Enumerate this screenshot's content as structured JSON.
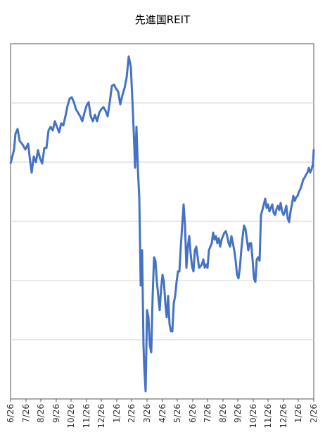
{
  "chart_data": {
    "type": "line",
    "title": "先進国REIT",
    "color": "#4472c4",
    "x": [
      0,
      5,
      7,
      10,
      13,
      17,
      21,
      25,
      28,
      30,
      33,
      36,
      39,
      42,
      45,
      48,
      51,
      54,
      57,
      60,
      63,
      66,
      69,
      72,
      75,
      78,
      81,
      84,
      87,
      90,
      93,
      96,
      99,
      102,
      105,
      108,
      111,
      114,
      117,
      120,
      123,
      126,
      129,
      132,
      135,
      138,
      141,
      144,
      147,
      150,
      153,
      156,
      159,
      162,
      165,
      168,
      171,
      174,
      176,
      177,
      179,
      181,
      183,
      185,
      187,
      189,
      190,
      192,
      194,
      196,
      198,
      200,
      202,
      204,
      206,
      208,
      210,
      212,
      214,
      216,
      218,
      220,
      222,
      224,
      226,
      228,
      230,
      232,
      234,
      236,
      238,
      240,
      242,
      244,
      246,
      248,
      250,
      252,
      254,
      256,
      258,
      260,
      262,
      264,
      266,
      268,
      270,
      272,
      274,
      276,
      278,
      280,
      282,
      284,
      286,
      288,
      290,
      292,
      294,
      296,
      298,
      300,
      302,
      304,
      306,
      308,
      310,
      312,
      314,
      316,
      318,
      320,
      322,
      324,
      326,
      328,
      330,
      332,
      334,
      336,
      338,
      340,
      342,
      344,
      346,
      348,
      350,
      352,
      354,
      356,
      358,
      360,
      362,
      364,
      366,
      368,
      370,
      372,
      374,
      376,
      378,
      380,
      382,
      384,
      386,
      388,
      390,
      392,
      394,
      396,
      398,
      400,
      402,
      404,
      406,
      408,
      410,
      412,
      414,
      416,
      418,
      420,
      422,
      424,
      426,
      428,
      430,
      431
    ],
    "values": [
      334,
      354,
      376,
      383,
      366,
      361,
      354,
      362,
      336,
      321,
      344,
      336,
      353,
      341,
      334,
      356,
      356,
      381,
      386,
      381,
      394,
      386,
      378,
      391,
      388,
      401,
      416,
      426,
      428,
      421,
      411,
      406,
      401,
      394,
      406,
      416,
      421,
      401,
      394,
      403,
      394,
      406,
      411,
      414,
      409,
      401,
      421,
      444,
      446,
      440,
      436,
      418,
      431,
      441,
      456,
      486,
      471,
      406,
      356,
      328,
      386,
      326,
      286,
      161,
      211,
      76,
      46,
      11,
      126,
      116,
      76,
      66,
      146,
      201,
      196,
      166,
      146,
      126,
      156,
      176,
      166,
      136,
      116,
      146,
      106,
      96,
      96,
      136,
      146,
      166,
      181,
      181,
      216,
      246,
      276,
      246,
      186,
      216,
      231,
      206,
      188,
      181,
      211,
      216,
      201,
      186,
      188,
      191,
      198,
      186,
      191,
      186,
      211,
      216,
      221,
      236,
      226,
      231,
      221,
      228,
      216,
      226,
      231,
      236,
      238,
      231,
      221,
      216,
      231,
      221,
      211,
      196,
      176,
      171,
      186,
      211,
      231,
      246,
      241,
      226,
      211,
      221,
      221,
      198,
      171,
      166,
      198,
      201,
      196,
      261,
      268,
      276,
      284,
      271,
      276,
      266,
      271,
      276,
      264,
      261,
      269,
      274,
      268,
      278,
      266,
      261,
      266,
      274,
      256,
      251,
      266,
      276,
      288,
      281,
      286,
      288,
      294,
      298,
      304,
      311,
      314,
      318,
      321,
      328,
      321,
      326,
      334,
      354
    ],
    "xlim": [
      0,
      431
    ],
    "xticks": [
      {
        "value": 0,
        "label": "6/26"
      },
      {
        "value": 22,
        "label": "7/26"
      },
      {
        "value": 43,
        "label": "8/26"
      },
      {
        "value": 65,
        "label": "9/26"
      },
      {
        "value": 86,
        "label": "10/26"
      },
      {
        "value": 108,
        "label": "11/26"
      },
      {
        "value": 129,
        "label": "12/26"
      },
      {
        "value": 151,
        "label": "1/26"
      },
      {
        "value": 172,
        "label": "2/26"
      },
      {
        "value": 194,
        "label": "3/26"
      },
      {
        "value": 216,
        "label": "4/26"
      },
      {
        "value": 237,
        "label": "5/26"
      },
      {
        "value": 259,
        "label": "6/26"
      },
      {
        "value": 280,
        "label": "7/26"
      },
      {
        "value": 302,
        "label": "8/26"
      },
      {
        "value": 323,
        "label": "9/26"
      },
      {
        "value": 345,
        "label": "10/26"
      },
      {
        "value": 366,
        "label": "11/26"
      },
      {
        "value": 388,
        "label": "12/26"
      },
      {
        "value": 409,
        "label": "1/26"
      },
      {
        "value": 431,
        "label": "2/26"
      }
    ],
    "ylim": [
      0,
      504
    ],
    "yticks": [
      84,
      168,
      252,
      336,
      420
    ],
    "ytick_labels": false,
    "grid": true
  }
}
